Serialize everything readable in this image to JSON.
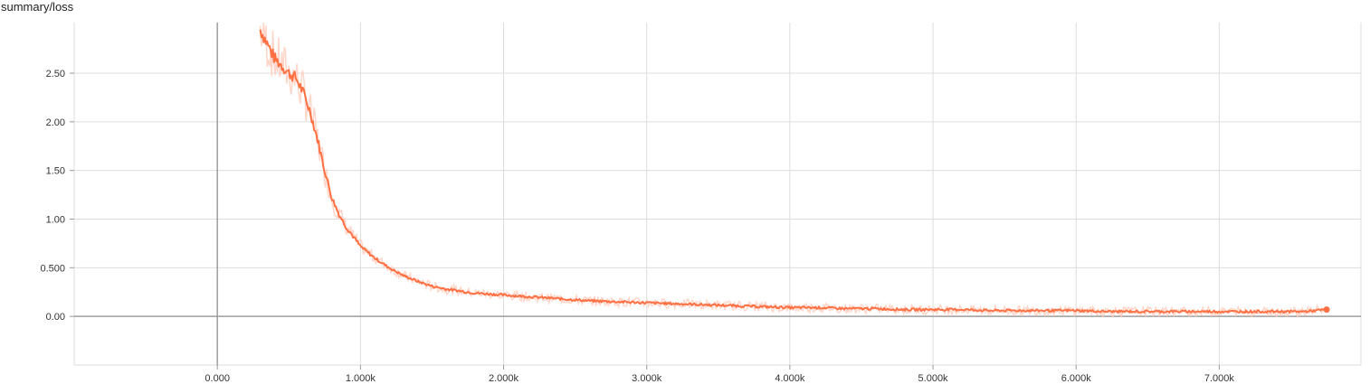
{
  "chart_data": {
    "type": "line",
    "title": "summary/loss",
    "xlabel": "",
    "ylabel": "",
    "xlim": [
      -1000,
      7990
    ],
    "ylim": [
      -0.5,
      3.02
    ],
    "x_ticks": [
      0,
      1000,
      2000,
      3000,
      4000,
      5000,
      6000,
      7000
    ],
    "x_tick_labels": [
      "0.000",
      "1.000k",
      "2.000k",
      "3.000k",
      "4.000k",
      "5.000k",
      "6.000k",
      "7.000k"
    ],
    "y_ticks": [
      0,
      0.5,
      1.0,
      1.5,
      2.0,
      2.5
    ],
    "y_tick_labels": [
      "0.00",
      "0.500",
      "1.00",
      "1.50",
      "2.00",
      "2.50"
    ],
    "grid": true,
    "legend": "none",
    "colors": {
      "smoothed": "#ff7043",
      "raw": "#ffccbc",
      "grid": "#dddddd",
      "zero_axis": "#9e9e9e"
    },
    "series": [
      {
        "role": "smoothed",
        "x": [
          300,
          350,
          400,
          450,
          500,
          550,
          600,
          650,
          700,
          750,
          800,
          850,
          900,
          950,
          1000,
          1050,
          1100,
          1150,
          1200,
          1300,
          1400,
          1500,
          1600,
          1700,
          1800,
          1900,
          2000,
          2200,
          2400,
          2600,
          2800,
          3000,
          3200,
          3400,
          3600,
          3800,
          4000,
          4200,
          4400,
          4600,
          4800,
          5000,
          5200,
          5400,
          5600,
          5800,
          6000,
          6200,
          6400,
          6600,
          6800,
          7000,
          7200,
          7400,
          7600,
          7750
        ],
        "values": [
          2.95,
          2.8,
          2.65,
          2.58,
          2.5,
          2.45,
          2.3,
          2.1,
          1.82,
          1.5,
          1.22,
          1.05,
          0.92,
          0.82,
          0.72,
          0.66,
          0.6,
          0.55,
          0.5,
          0.42,
          0.36,
          0.31,
          0.28,
          0.26,
          0.24,
          0.23,
          0.22,
          0.2,
          0.18,
          0.16,
          0.15,
          0.14,
          0.13,
          0.12,
          0.11,
          0.1,
          0.09,
          0.09,
          0.08,
          0.08,
          0.07,
          0.07,
          0.07,
          0.06,
          0.06,
          0.06,
          0.06,
          0.05,
          0.05,
          0.05,
          0.05,
          0.05,
          0.05,
          0.05,
          0.05,
          0.07
        ]
      }
    ]
  }
}
